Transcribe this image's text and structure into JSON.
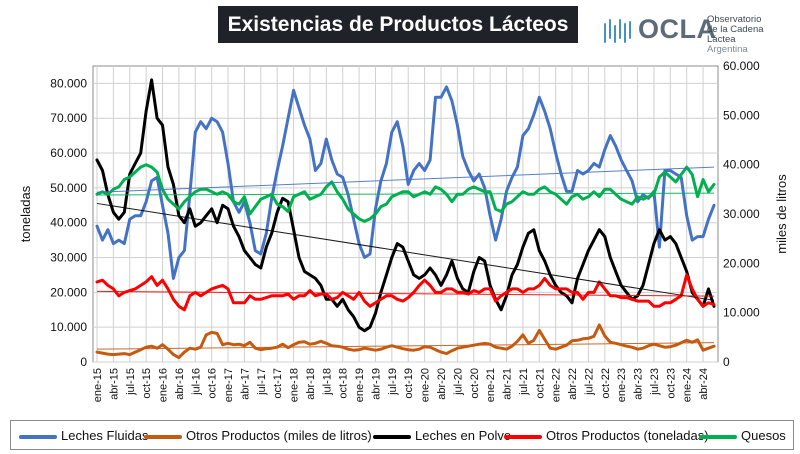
{
  "title": "Existencias de Productos Lácteos",
  "logo": {
    "name": "OCLA",
    "line1": "Observatorio",
    "line2": "de la Cadena Láctea",
    "line3": "Argentina"
  },
  "chart_data": {
    "type": "line",
    "ylabel": "toneladas",
    "y2label": "miles de litros",
    "ylim": [
      0,
      85000
    ],
    "y2lim": [
      0,
      60000
    ],
    "yticks": [
      "0",
      "10.000",
      "20.000",
      "30.000",
      "40.000",
      "50.000",
      "60.000",
      "70.000",
      "80.000"
    ],
    "y2ticks": [
      "0",
      "10.000",
      "20.000",
      "30.000",
      "40.000",
      "50.000",
      "60.000"
    ],
    "xticks": [
      "ene-15",
      "abr-15",
      "jul-15",
      "oct-15",
      "ene-16",
      "abr-16",
      "jul-16",
      "oct-16",
      "ene-17",
      "abr-17",
      "jul-17",
      "oct-17",
      "ene-18",
      "abr-18",
      "jul-18",
      "oct-18",
      "ene-19",
      "abr-19",
      "jul-19",
      "oct-19",
      "ene-20",
      "abr-20",
      "jul-20",
      "oct-20",
      "ene-21",
      "abr-21",
      "jul-21",
      "oct-21",
      "ene-22",
      "abr-22",
      "jul-22",
      "oct-22",
      "ene-23",
      "abr-23",
      "jul-23",
      "oct-23",
      "ene-24",
      "abr-24"
    ],
    "grid": true,
    "legend_position": "bottom",
    "series": [
      {
        "name": "Leches Fluidas",
        "axis": "left",
        "color": "#4472c4",
        "values": [
          39000,
          35000,
          38000,
          34000,
          35000,
          34000,
          41000,
          42000,
          42000,
          46000,
          52000,
          53000,
          45000,
          37000,
          24000,
          30000,
          32000,
          48000,
          66000,
          69000,
          67000,
          70000,
          69000,
          66000,
          57000,
          46000,
          43000,
          46000,
          40000,
          32000,
          31000,
          37000,
          47000,
          55000,
          62000,
          70000,
          78000,
          73000,
          68000,
          64000,
          55000,
          57000,
          64000,
          58000,
          54000,
          53000,
          48000,
          41000,
          34000,
          30000,
          31000,
          44000,
          52000,
          57000,
          66000,
          69000,
          62000,
          51000,
          55000,
          57000,
          55000,
          58000,
          76000,
          76000,
          79000,
          75000,
          68000,
          59000,
          55000,
          52000,
          54000,
          50000,
          42000,
          35000,
          41000,
          49000,
          53000,
          56000,
          65000,
          67000,
          71000,
          76000,
          72000,
          67000,
          60000,
          54000,
          49000,
          49000,
          55000,
          54000,
          55000,
          57000,
          56000,
          61000,
          65000,
          62000,
          58000,
          55000,
          52000,
          46000,
          48000,
          47000,
          49000,
          33000,
          55000,
          55000,
          54000,
          53000,
          42000,
          35000,
          36000,
          36000,
          41000,
          45000
        ]
      },
      {
        "name": "Otros Productos (miles de litros)",
        "axis": "right",
        "color": "#c55a11",
        "values": [
          2000,
          1800,
          1600,
          1500,
          1600,
          1700,
          1500,
          2000,
          2500,
          3000,
          3200,
          2800,
          3500,
          2600,
          1500,
          900,
          2000,
          2800,
          2600,
          3000,
          5500,
          6000,
          5800,
          3500,
          3800,
          3500,
          3600,
          3300,
          4000,
          2800,
          2500,
          2700,
          2800,
          3000,
          3600,
          2900,
          3500,
          4000,
          4100,
          3600,
          3800,
          4200,
          3800,
          3300,
          3200,
          3000,
          2600,
          2400,
          2500,
          2800,
          2600,
          2400,
          2600,
          3000,
          3300,
          3000,
          2700,
          2500,
          2400,
          2600,
          3100,
          3000,
          2500,
          2000,
          1700,
          2300,
          2800,
          3000,
          3200,
          3400,
          3600,
          3800,
          3600,
          3000,
          2800,
          2600,
          3200,
          4200,
          5500,
          3800,
          4400,
          6400,
          4600,
          2800,
          2600,
          3000,
          3400,
          4300,
          4400,
          4700,
          4800,
          5200,
          7500,
          5300,
          4000,
          3800,
          3500,
          3200,
          3000,
          2600,
          2800,
          3300,
          3600,
          3300,
          3000,
          3100,
          3400,
          3900,
          4400,
          4000,
          4500,
          2400,
          2800,
          3200
        ]
      },
      {
        "name": "Leches en Polvo",
        "axis": "left",
        "color": "#000000",
        "values": [
          58000,
          55000,
          48000,
          43000,
          41000,
          43000,
          54000,
          57000,
          60000,
          72000,
          81000,
          70000,
          68000,
          56000,
          51000,
          42000,
          40000,
          44000,
          39000,
          40000,
          42000,
          44000,
          40000,
          45000,
          44000,
          39000,
          36000,
          32000,
          30000,
          28000,
          27000,
          33000,
          37000,
          43000,
          47000,
          46000,
          38000,
          30000,
          26000,
          25000,
          24000,
          22000,
          18000,
          18000,
          16000,
          18000,
          15000,
          13000,
          10000,
          9000,
          10000,
          14000,
          20000,
          25000,
          30000,
          34000,
          33000,
          29000,
          25000,
          24000,
          25000,
          27000,
          25000,
          22000,
          25000,
          29000,
          24000,
          21000,
          20000,
          26000,
          30000,
          29000,
          22000,
          18000,
          15000,
          19000,
          25000,
          28000,
          33000,
          37000,
          38000,
          32000,
          29000,
          25000,
          22000,
          20000,
          19000,
          17000,
          24000,
          28000,
          32000,
          35000,
          38000,
          36000,
          30000,
          26000,
          22000,
          20000,
          18000,
          19000,
          22000,
          28000,
          34000,
          38000,
          35000,
          36000,
          34000,
          30000,
          26000,
          20000,
          18000,
          16000,
          21000,
          16000
        ]
      },
      {
        "name": "Otros Productos (toneladas)",
        "axis": "left",
        "color": "#ff0000",
        "values": [
          23000,
          23500,
          22000,
          21000,
          19000,
          20000,
          20500,
          21000,
          22000,
          23000,
          24500,
          22000,
          23500,
          21000,
          18000,
          16000,
          15000,
          19000,
          20000,
          19000,
          20000,
          21000,
          21500,
          22000,
          21000,
          17000,
          17000,
          17000,
          19000,
          18000,
          18000,
          18500,
          19000,
          19000,
          19000,
          19500,
          18000,
          19000,
          19000,
          20500,
          19000,
          19500,
          19500,
          18000,
          18500,
          20000,
          19000,
          18000,
          20000,
          17500,
          16000,
          17000,
          18000,
          19000,
          19000,
          18000,
          17500,
          18500,
          20000,
          22000,
          23500,
          22000,
          20000,
          20000,
          21000,
          21000,
          20000,
          20000,
          19500,
          20500,
          20000,
          21000,
          21000,
          17500,
          19000,
          20000,
          21000,
          21000,
          20000,
          21000,
          21000,
          22000,
          24000,
          22000,
          21000,
          21000,
          21000,
          20000,
          20000,
          18000,
          20000,
          20000,
          23000,
          21000,
          19000,
          19000,
          18500,
          18500,
          18000,
          17500,
          17500,
          17500,
          16000,
          16000,
          17000,
          17000,
          18000,
          19000,
          25000,
          21000,
          18000,
          16000,
          17000,
          16500
        ]
      },
      {
        "name": "Quesos",
        "axis": "right",
        "color": "#00b050",
        "values": [
          34000,
          34500,
          34000,
          35000,
          35500,
          37000,
          37500,
          38500,
          39500,
          40000,
          39500,
          38500,
          35000,
          33000,
          32000,
          31000,
          32500,
          33500,
          34500,
          35000,
          35000,
          34500,
          34000,
          34500,
          34000,
          32500,
          32000,
          33500,
          30000,
          31500,
          33000,
          33500,
          34000,
          32000,
          31500,
          30500,
          33500,
          34000,
          34500,
          33000,
          33500,
          34000,
          35500,
          36500,
          34500,
          33000,
          31000,
          30000,
          29000,
          28500,
          29000,
          30000,
          31500,
          32000,
          33500,
          34000,
          34500,
          34500,
          33500,
          34000,
          34500,
          34000,
          35500,
          35000,
          34000,
          32500,
          34000,
          34000,
          35000,
          35500,
          35000,
          34500,
          34500,
          31000,
          30500,
          32000,
          32500,
          33500,
          34500,
          34000,
          34000,
          35000,
          35500,
          34500,
          34000,
          33000,
          32000,
          33500,
          34000,
          33000,
          33500,
          34500,
          33500,
          35000,
          35000,
          34000,
          33000,
          32500,
          32000,
          33500,
          33000,
          33500,
          34000,
          37500,
          38500,
          37500,
          36500,
          38000,
          39500,
          38000,
          33500,
          37000,
          34500,
          36000
        ]
      }
    ]
  }
}
